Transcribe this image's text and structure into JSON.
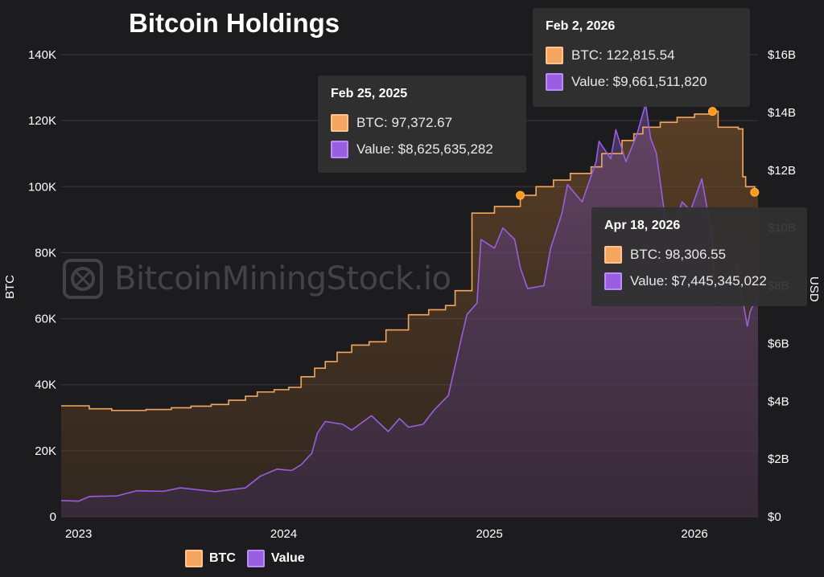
{
  "watermark": "BitcoinMiningStock.io",
  "colors": {
    "btc": "#f4a661",
    "value": "#9a5ee0",
    "background": "#1c1c1e"
  },
  "chart_data": {
    "type": "area",
    "title": "Bitcoin Holdings",
    "ylabel_left": "BTC",
    "ylabel_right": "USD",
    "xlim": [
      "2022-12-01",
      "2026-04-24"
    ],
    "ylim_left": [
      0,
      140000
    ],
    "ylim_right": [
      0,
      16000000000
    ],
    "x_ticks": [
      "2023",
      "2024",
      "2025",
      "2026"
    ],
    "y_ticks_left": [
      "0",
      "20K",
      "40K",
      "60K",
      "80K",
      "100K",
      "120K",
      "140K"
    ],
    "y_ticks_right": [
      "$0",
      "$2B",
      "$4B",
      "$6B",
      "$8B",
      "$10B",
      "$12B",
      "$14B",
      "$16B"
    ],
    "grid": true,
    "legend": {
      "position": "bottom-left",
      "items": [
        "BTC",
        "Value"
      ]
    },
    "series": [
      {
        "name": "BTC",
        "axis": "left",
        "step": true,
        "points": [
          [
            "2022-12-01",
            33600
          ],
          [
            "2023-01-20",
            32700
          ],
          [
            "2023-03-01",
            32200
          ],
          [
            "2023-05-01",
            32500
          ],
          [
            "2023-06-15",
            33000
          ],
          [
            "2023-07-20",
            33500
          ],
          [
            "2023-08-25",
            34000
          ],
          [
            "2023-09-25",
            35300
          ],
          [
            "2023-10-25",
            36500
          ],
          [
            "2023-11-15",
            37800
          ],
          [
            "2023-12-15",
            38500
          ],
          [
            "2024-01-10",
            39200
          ],
          [
            "2024-02-01",
            42400
          ],
          [
            "2024-02-25",
            45000
          ],
          [
            "2024-03-15",
            47000
          ],
          [
            "2024-04-05",
            49800
          ],
          [
            "2024-05-01",
            52000
          ],
          [
            "2024-06-01",
            53000
          ],
          [
            "2024-07-01",
            56600
          ],
          [
            "2024-08-10",
            61200
          ],
          [
            "2024-09-15",
            62700
          ],
          [
            "2024-10-15",
            64000
          ],
          [
            "2024-11-01",
            68500
          ],
          [
            "2024-12-01",
            92000
          ],
          [
            "2025-01-10",
            94000
          ],
          [
            "2025-02-25",
            97372.67
          ],
          [
            "2025-03-25",
            100000
          ],
          [
            "2025-04-25",
            102000
          ],
          [
            "2025-05-25",
            104000
          ],
          [
            "2025-07-01",
            106000
          ],
          [
            "2025-07-20",
            110000
          ],
          [
            "2025-08-25",
            114000
          ],
          [
            "2025-09-15",
            116000
          ],
          [
            "2025-10-01",
            118000
          ],
          [
            "2025-11-01",
            119500
          ],
          [
            "2025-12-01",
            121000
          ],
          [
            "2026-01-01",
            122000
          ],
          [
            "2026-02-02",
            122815.54
          ],
          [
            "2026-02-12",
            118000
          ],
          [
            "2026-03-20",
            117500
          ],
          [
            "2026-03-28",
            103000
          ],
          [
            "2026-04-02",
            100000
          ],
          [
            "2026-04-18",
            98306.55
          ]
        ]
      },
      {
        "name": "Value",
        "axis": "right",
        "points": [
          [
            "2022-12-01",
            560000000
          ],
          [
            "2023-01-01",
            540000000
          ],
          [
            "2023-01-20",
            700000000
          ],
          [
            "2023-03-10",
            720000000
          ],
          [
            "2023-04-15",
            900000000
          ],
          [
            "2023-06-01",
            880000000
          ],
          [
            "2023-07-01",
            1000000000
          ],
          [
            "2023-09-01",
            870000000
          ],
          [
            "2023-10-25",
            1000000000
          ],
          [
            "2023-11-20",
            1400000000
          ],
          [
            "2023-12-20",
            1650000000
          ],
          [
            "2024-01-15",
            1600000000
          ],
          [
            "2024-02-01",
            1800000000
          ],
          [
            "2024-02-20",
            2200000000
          ],
          [
            "2024-03-01",
            2900000000
          ],
          [
            "2024-03-15",
            3300000000
          ],
          [
            "2024-04-15",
            3200000000
          ],
          [
            "2024-05-01",
            3000000000
          ],
          [
            "2024-06-05",
            3500000000
          ],
          [
            "2024-07-05",
            2950000000
          ],
          [
            "2024-07-25",
            3400000000
          ],
          [
            "2024-08-10",
            3100000000
          ],
          [
            "2024-09-05",
            3200000000
          ],
          [
            "2024-09-25",
            3700000000
          ],
          [
            "2024-10-20",
            4200000000
          ],
          [
            "2024-11-10",
            6000000000
          ],
          [
            "2024-11-22",
            7000000000
          ],
          [
            "2024-12-10",
            7400000000
          ],
          [
            "2024-12-17",
            9600000000
          ],
          [
            "2025-01-10",
            9300000000
          ],
          [
            "2025-01-25",
            10000000000
          ],
          [
            "2025-02-15",
            9600000000
          ],
          [
            "2025-02-25",
            8625635282
          ],
          [
            "2025-03-10",
            7900000000
          ],
          [
            "2025-04-08",
            8000000000
          ],
          [
            "2025-04-20",
            9300000000
          ],
          [
            "2025-05-10",
            10500000000
          ],
          [
            "2025-05-20",
            11500000000
          ],
          [
            "2025-06-15",
            10900000000
          ],
          [
            "2025-07-10",
            12300000000
          ],
          [
            "2025-07-15",
            13000000000
          ],
          [
            "2025-08-05",
            12400000000
          ],
          [
            "2025-08-14",
            13400000000
          ],
          [
            "2025-09-01",
            12300000000
          ],
          [
            "2025-09-20",
            13200000000
          ],
          [
            "2025-10-06",
            14300000000
          ],
          [
            "2025-10-15",
            13100000000
          ],
          [
            "2025-10-25",
            12600000000
          ],
          [
            "2025-11-10",
            10300000000
          ],
          [
            "2025-11-22",
            9900000000
          ],
          [
            "2025-12-10",
            10900000000
          ],
          [
            "2025-12-25",
            10600000000
          ],
          [
            "2026-01-14",
            11700000000
          ],
          [
            "2026-02-02",
            9661511820
          ],
          [
            "2026-02-06",
            8000000000
          ],
          [
            "2026-02-20",
            8200000000
          ],
          [
            "2026-03-05",
            8500000000
          ],
          [
            "2026-03-17",
            8700000000
          ],
          [
            "2026-03-25",
            7800000000
          ],
          [
            "2026-04-05",
            6600000000
          ],
          [
            "2026-04-10",
            7100000000
          ],
          [
            "2026-04-18",
            7445345022
          ],
          [
            "2026-04-24",
            7600000000
          ]
        ]
      }
    ],
    "highlighted_points": [
      {
        "date": "2025-02-25",
        "btc": 97372.67,
        "value": 8625635282
      },
      {
        "date": "2026-02-02",
        "btc": 122815.54,
        "value": 9661511820
      },
      {
        "date": "2026-04-18",
        "btc": 98306.55,
        "value": 7445345022
      }
    ]
  },
  "tooltips": [
    {
      "date": "Feb 25, 2025",
      "btc": "BTC: 97,372.67",
      "value": "Value: $8,625,635,282"
    },
    {
      "date": "Feb 2, 2026",
      "btc": "BTC: 122,815.54",
      "value": "Value: $9,661,511,820"
    },
    {
      "date": "Apr 18, 2026",
      "btc": "BTC: 98,306.55",
      "value": "Value: $7,445,345,022"
    }
  ]
}
